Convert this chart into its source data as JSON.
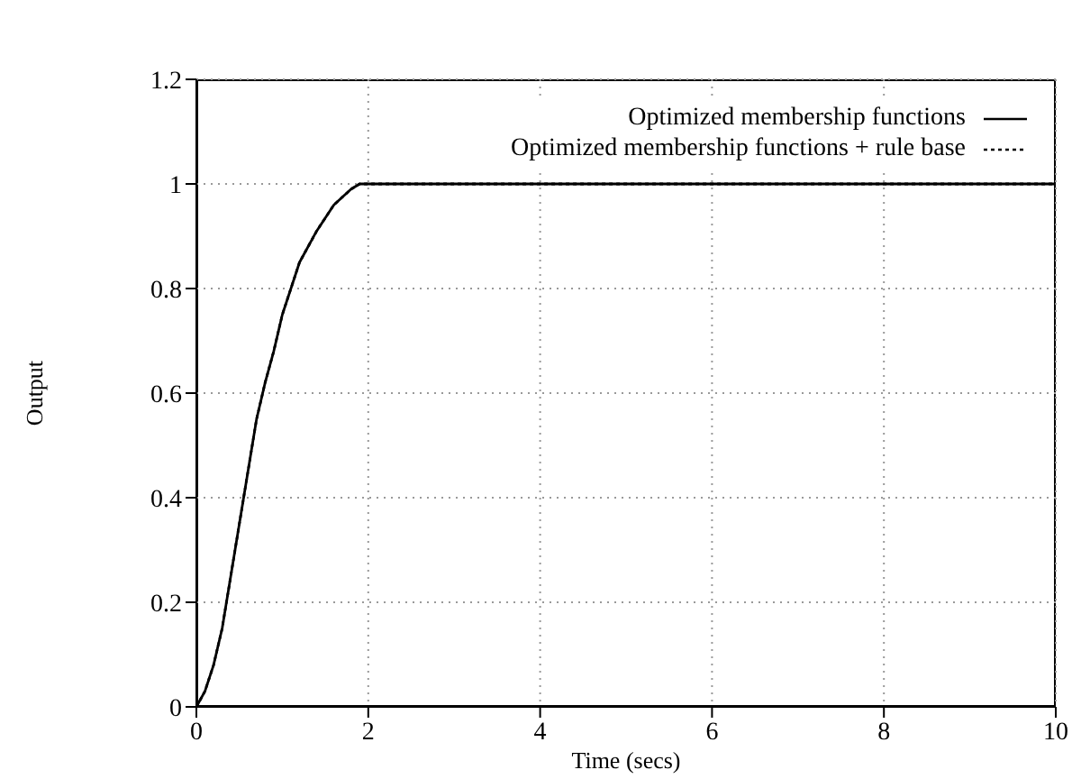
{
  "chart_data": {
    "type": "line",
    "xlabel": "Time (secs)",
    "ylabel": "Output",
    "x": [
      0,
      0.1,
      0.2,
      0.3,
      0.4,
      0.5,
      0.6,
      0.7,
      0.8,
      0.9,
      1.0,
      1.1,
      1.2,
      1.4,
      1.6,
      1.8,
      1.9,
      2,
      10
    ],
    "series": [
      {
        "name": "Optimized membership functions",
        "color": "#000000",
        "line_style": "solid",
        "values": [
          0,
          0.03,
          0.08,
          0.15,
          0.25,
          0.35,
          0.45,
          0.55,
          0.62,
          0.68,
          0.75,
          0.8,
          0.85,
          0.91,
          0.96,
          0.99,
          1,
          1,
          1
        ]
      },
      {
        "name": "Optimized membership functions + rule base",
        "color": "#000000",
        "line_style": "dotted",
        "values": [
          0,
          0.03,
          0.08,
          0.15,
          0.25,
          0.35,
          0.45,
          0.55,
          0.62,
          0.68,
          0.75,
          0.8,
          0.85,
          0.91,
          0.96,
          0.99,
          1,
          1,
          1
        ]
      }
    ],
    "xlim": [
      0,
      10
    ],
    "xticks": [
      0,
      2,
      4,
      6,
      8,
      10
    ],
    "ylim": [
      0,
      1.2
    ],
    "yticks": [
      0,
      0.2,
      0.4,
      0.6,
      0.8,
      1,
      1.2
    ],
    "grid": true,
    "legend": "top right",
    "marker": "none"
  }
}
